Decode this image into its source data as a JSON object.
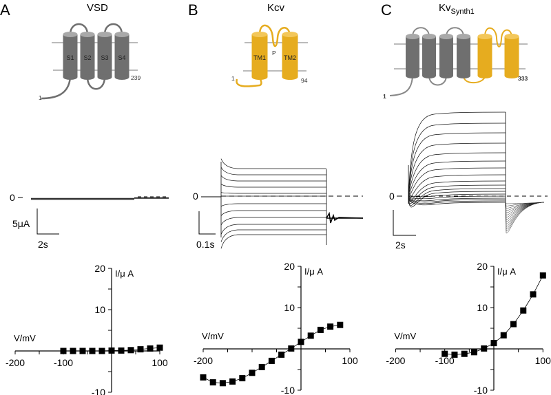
{
  "panels": [
    {
      "letter": "A",
      "title": "VSD",
      "topology": {
        "segments": [
          "S1",
          "S2",
          "S3",
          "S4"
        ],
        "n_term": "1",
        "c_term": "239"
      },
      "trace": {
        "zero_label": "0",
        "scale_current": "5μA",
        "scale_time": "2s"
      }
    },
    {
      "letter": "B",
      "title": "Kcv",
      "topology": {
        "segments": [
          "TM1",
          "TM2"
        ],
        "pore": "P",
        "n_term": "1",
        "c_term": "94"
      },
      "trace": {
        "zero_label": "0",
        "scale_time": "0.1s"
      }
    },
    {
      "letter": "C",
      "title": "Kv",
      "title_sub": "Synth1",
      "topology": {
        "n_term": "1",
        "c_term": "333"
      },
      "trace": {
        "zero_label": "0",
        "scale_time": "2s"
      }
    }
  ],
  "colors": {
    "vsd_gray": "#6f6f6f",
    "vsd_gray_top": "#a9a9a9",
    "kcv_yellow": "#e6ac1f",
    "kcv_yellow_top": "#f3c75a"
  },
  "chart_data": [
    {
      "type": "line",
      "panel": "A",
      "xlabel": "V/mV",
      "ylabel": "I/μ A",
      "xlim": [
        -200,
        100
      ],
      "ylim": [
        -10,
        20
      ],
      "x_tick_labels": [
        "-200",
        "-100",
        "100"
      ],
      "y_tick_labels": [
        "20",
        "10",
        "-10"
      ],
      "x": [
        -100,
        -80,
        -60,
        -40,
        -20,
        0,
        20,
        40,
        60,
        80,
        100
      ],
      "values": [
        0,
        0,
        0,
        0,
        0,
        0.1,
        0.1,
        0.2,
        0.4,
        0.6,
        0.8
      ],
      "marker": "square",
      "grid": false
    },
    {
      "type": "line",
      "panel": "B",
      "xlabel": "V/mV",
      "ylabel": "I/μ A",
      "xlim": [
        -200,
        100
      ],
      "ylim": [
        -10,
        20
      ],
      "x_tick_labels": [
        "-200",
        "100"
      ],
      "y_tick_labels": [
        "20",
        "10",
        "-10"
      ],
      "x": [
        -200,
        -180,
        -160,
        -140,
        -120,
        -100,
        -80,
        -60,
        -40,
        -20,
        0,
        20,
        40,
        60,
        80
      ],
      "values": [
        -6.9,
        -8.1,
        -8.3,
        -7.9,
        -7.1,
        -5.8,
        -4.4,
        -2.9,
        -1.4,
        0.1,
        1.7,
        3.2,
        4.6,
        5.4,
        5.8
      ],
      "marker": "square",
      "grid": false
    },
    {
      "type": "line",
      "panel": "C",
      "xlabel": "V/mV",
      "ylabel": "I/μ A",
      "xlim": [
        -200,
        100
      ],
      "ylim": [
        -10,
        20
      ],
      "x_tick_labels": [
        "-200",
        "-100",
        "100"
      ],
      "y_tick_labels": [
        "20",
        "10",
        "-10"
      ],
      "x": [
        -100,
        -80,
        -60,
        -40,
        -20,
        0,
        20,
        40,
        60,
        80,
        100
      ],
      "values": [
        -1.2,
        -1.4,
        -1.2,
        -0.8,
        0.1,
        1.4,
        3.3,
        6.0,
        9.3,
        13.2,
        17.8
      ],
      "marker": "square",
      "grid": false
    }
  ]
}
